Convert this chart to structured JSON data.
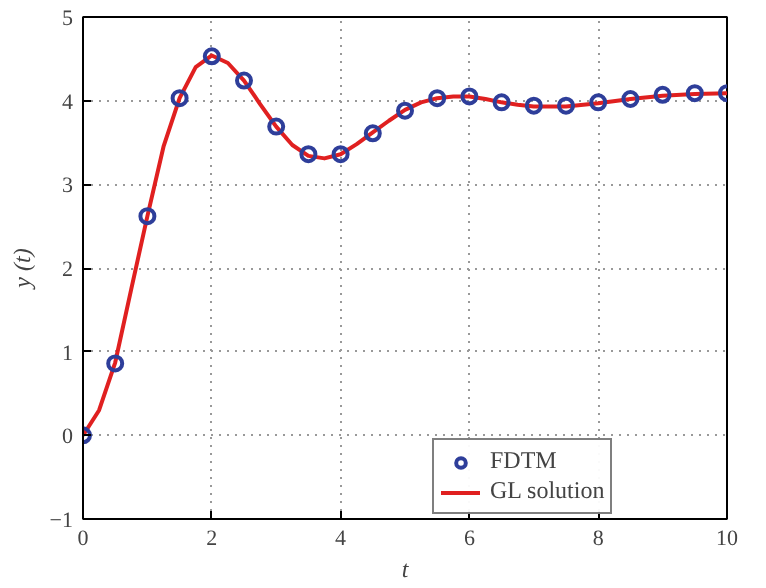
{
  "chart_data": {
    "type": "line",
    "xlabel": "t",
    "ylabel": "y (t)",
    "xlim": [
      0,
      10
    ],
    "ylim": [
      -1,
      5
    ],
    "xticks": [
      0,
      2,
      4,
      6,
      8,
      10
    ],
    "yticks": [
      -1,
      0,
      1,
      2,
      3,
      4,
      5
    ],
    "grid": true,
    "legend": "bottom",
    "series": [
      {
        "name": "FDTM",
        "type": "scatter",
        "marker": "circle",
        "color": "#2e3e9a",
        "x": [
          0,
          0.5,
          1,
          1.5,
          2,
          2.5,
          3,
          3.5,
          4,
          4.5,
          5,
          5.5,
          6,
          6.5,
          7,
          7.5,
          8,
          8.5,
          9,
          9.5,
          10
        ],
        "values": [
          0,
          0.86,
          2.62,
          4.03,
          4.53,
          4.24,
          3.69,
          3.36,
          3.36,
          3.61,
          3.88,
          4.03,
          4.05,
          3.98,
          3.94,
          3.94,
          3.98,
          4.02,
          4.07,
          4.09,
          4.09
        ]
      },
      {
        "name": "GL solution",
        "line_style": "solid",
        "color": "#e02020",
        "x": [
          0,
          0.25,
          0.5,
          0.75,
          1,
          1.25,
          1.5,
          1.75,
          2,
          2.25,
          2.5,
          2.75,
          3,
          3.25,
          3.5,
          3.75,
          4,
          4.25,
          4.5,
          4.75,
          5,
          5.25,
          5.5,
          5.75,
          6,
          6.25,
          6.5,
          6.75,
          7,
          7.5,
          8,
          8.5,
          9,
          9.5,
          10
        ],
        "values": [
          0,
          0.3,
          0.87,
          1.75,
          2.62,
          3.45,
          4.03,
          4.4,
          4.54,
          4.45,
          4.24,
          3.96,
          3.69,
          3.47,
          3.34,
          3.31,
          3.36,
          3.48,
          3.62,
          3.76,
          3.89,
          3.98,
          4.03,
          4.05,
          4.05,
          4.02,
          3.98,
          3.95,
          3.93,
          3.93,
          3.97,
          4.02,
          4.06,
          4.08,
          4.09
        ]
      }
    ]
  }
}
